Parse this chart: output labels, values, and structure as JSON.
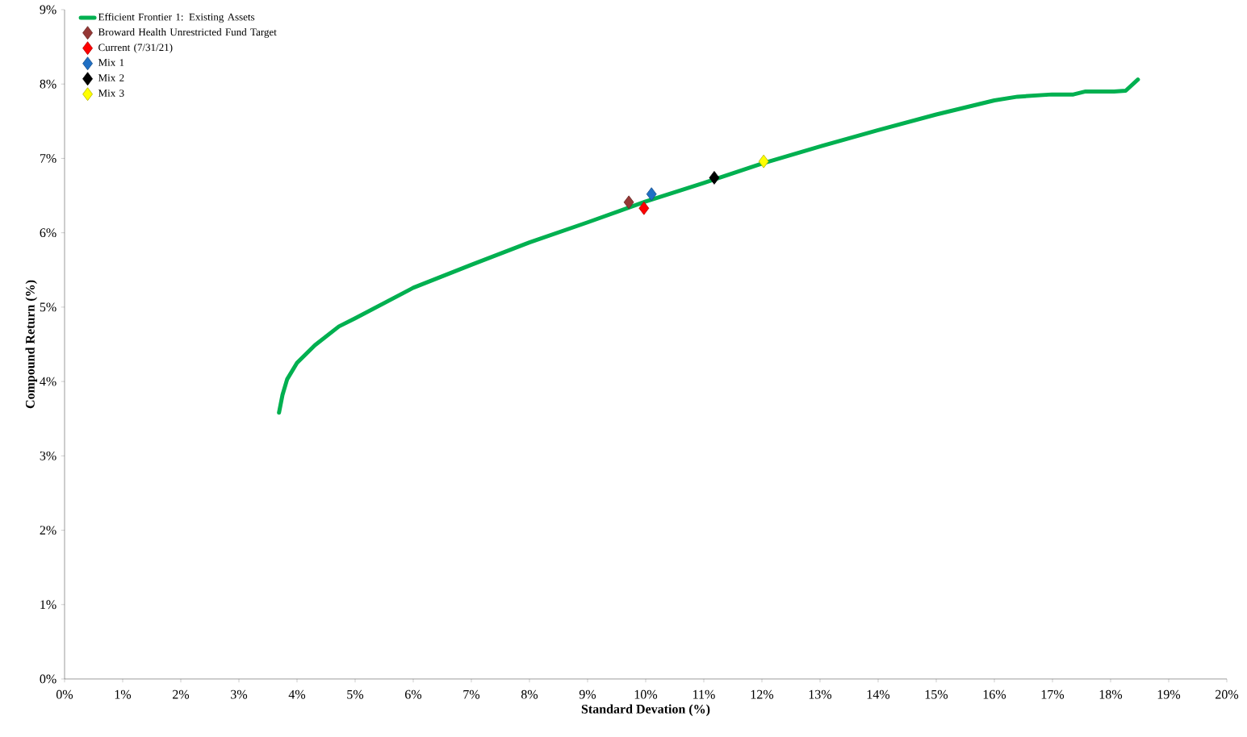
{
  "chart_data": {
    "type": "line",
    "xlabel": "Standard Devation (%)",
    "ylabel": "Compound Return (%)",
    "xlim": [
      0,
      20
    ],
    "ylim": [
      0,
      9
    ],
    "xticks": [
      {
        "value": 0,
        "label": "0%"
      },
      {
        "value": 1,
        "label": "1%"
      },
      {
        "value": 2,
        "label": "2%"
      },
      {
        "value": 3,
        "label": "3%"
      },
      {
        "value": 4,
        "label": "4%"
      },
      {
        "value": 5,
        "label": "5%"
      },
      {
        "value": 6,
        "label": "6%"
      },
      {
        "value": 7,
        "label": "7%"
      },
      {
        "value": 8,
        "label": "8%"
      },
      {
        "value": 9,
        "label": "9%"
      },
      {
        "value": 10,
        "label": "10%"
      },
      {
        "value": 11,
        "label": "11%"
      },
      {
        "value": 12,
        "label": "12%"
      },
      {
        "value": 13,
        "label": "13%"
      },
      {
        "value": 14,
        "label": "14%"
      },
      {
        "value": 15,
        "label": "15%"
      },
      {
        "value": 16,
        "label": "16%"
      },
      {
        "value": 17,
        "label": "17%"
      },
      {
        "value": 18,
        "label": "18%"
      },
      {
        "value": 19,
        "label": "19%"
      },
      {
        "value": 20,
        "label": "20%"
      }
    ],
    "yticks": [
      {
        "value": 0,
        "label": "0%"
      },
      {
        "value": 1,
        "label": "1%"
      },
      {
        "value": 2,
        "label": "2%"
      },
      {
        "value": 3,
        "label": "3%"
      },
      {
        "value": 4,
        "label": "4%"
      },
      {
        "value": 5,
        "label": "5%"
      },
      {
        "value": 6,
        "label": "6%"
      },
      {
        "value": 7,
        "label": "7%"
      },
      {
        "value": 8,
        "label": "8%"
      },
      {
        "value": 9,
        "label": "9%"
      }
    ],
    "grid": false,
    "legend": "top left",
    "series": [
      {
        "name": "Efficient Frontier 1: Existing Assets",
        "color": "#00b050",
        "x": [
          3.69,
          3.75,
          3.83,
          4.0,
          4.31,
          4.72,
          5.0,
          6.0,
          7.0,
          8.0,
          9.0,
          10.0,
          11.0,
          12.0,
          13.0,
          14.0,
          15.0,
          16.0,
          16.4,
          16.99,
          17.36,
          17.57,
          18.06,
          18.26,
          18.47
        ],
        "values": [
          3.58,
          3.82,
          4.03,
          4.25,
          4.49,
          4.74,
          4.85,
          5.26,
          5.57,
          5.87,
          6.14,
          6.42,
          6.67,
          6.93,
          7.16,
          7.38,
          7.59,
          7.78,
          7.83,
          7.86,
          7.86,
          7.9,
          7.9,
          7.91,
          8.06
        ]
      },
      {
        "name": "Broward Health Unrestricted Fund Target",
        "type": "scatter",
        "marker": "diamond",
        "color": "#953735",
        "x": [
          9.71
        ],
        "values": [
          6.41
        ]
      },
      {
        "name": "Current (7/31/21)",
        "type": "scatter",
        "marker": "diamond",
        "color": "#ff0000",
        "x": [
          9.97
        ],
        "values": [
          6.33
        ]
      },
      {
        "name": "Mix 1",
        "type": "scatter",
        "marker": "diamond",
        "color": "#1f6fc4",
        "x": [
          10.1
        ],
        "values": [
          6.52
        ]
      },
      {
        "name": "Mix 2",
        "type": "scatter",
        "marker": "diamond",
        "color": "#000000",
        "x": [
          11.18
        ],
        "values": [
          6.74
        ]
      },
      {
        "name": "Mix 3",
        "type": "scatter",
        "marker": "diamond",
        "color": "#ffff00",
        "x": [
          12.03
        ],
        "values": [
          6.96
        ]
      }
    ]
  }
}
